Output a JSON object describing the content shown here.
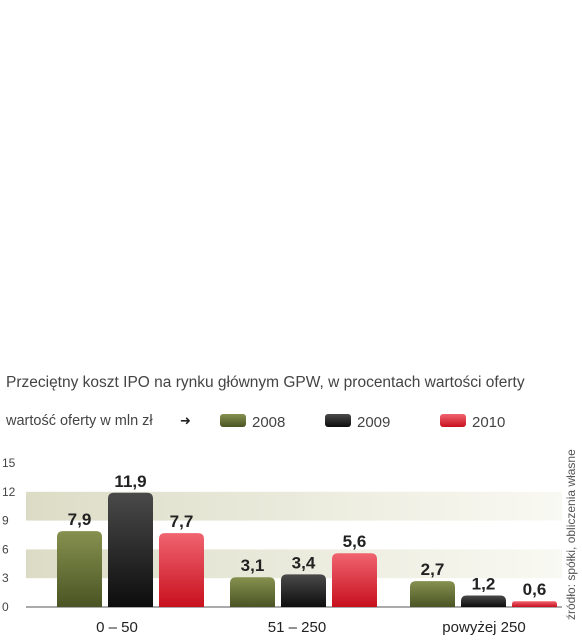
{
  "chart_data": {
    "type": "bar",
    "title": "Przeciętny koszt IPO na rynku głównym GPW, w procentach wartości oferty",
    "xlabel": "wartość oferty w mln zł",
    "ylabel": "",
    "ylim": [
      0,
      15
    ],
    "yticks": [
      0,
      3,
      6,
      9,
      12,
      15
    ],
    "categories": [
      "0 – 50",
      "51 – 250",
      "powyżej 250"
    ],
    "series": [
      {
        "name": "2008",
        "color": "#5e6a31",
        "values": [
          7.9,
          3.1,
          2.7
        ],
        "labels": [
          "7,9",
          "3,1",
          "2,7"
        ]
      },
      {
        "name": "2009",
        "color": "#222222",
        "values": [
          11.9,
          3.4,
          1.2
        ],
        "labels": [
          "11,9",
          "3,4",
          "1,2"
        ]
      },
      {
        "name": "2010",
        "color": "#d9222e",
        "values": [
          7.7,
          5.6,
          0.6
        ],
        "labels": [
          "7,7",
          "5,6",
          "0,6"
        ]
      }
    ],
    "legend": "top",
    "grid": true,
    "source": "źródło: spółki, obliczenia własne"
  }
}
